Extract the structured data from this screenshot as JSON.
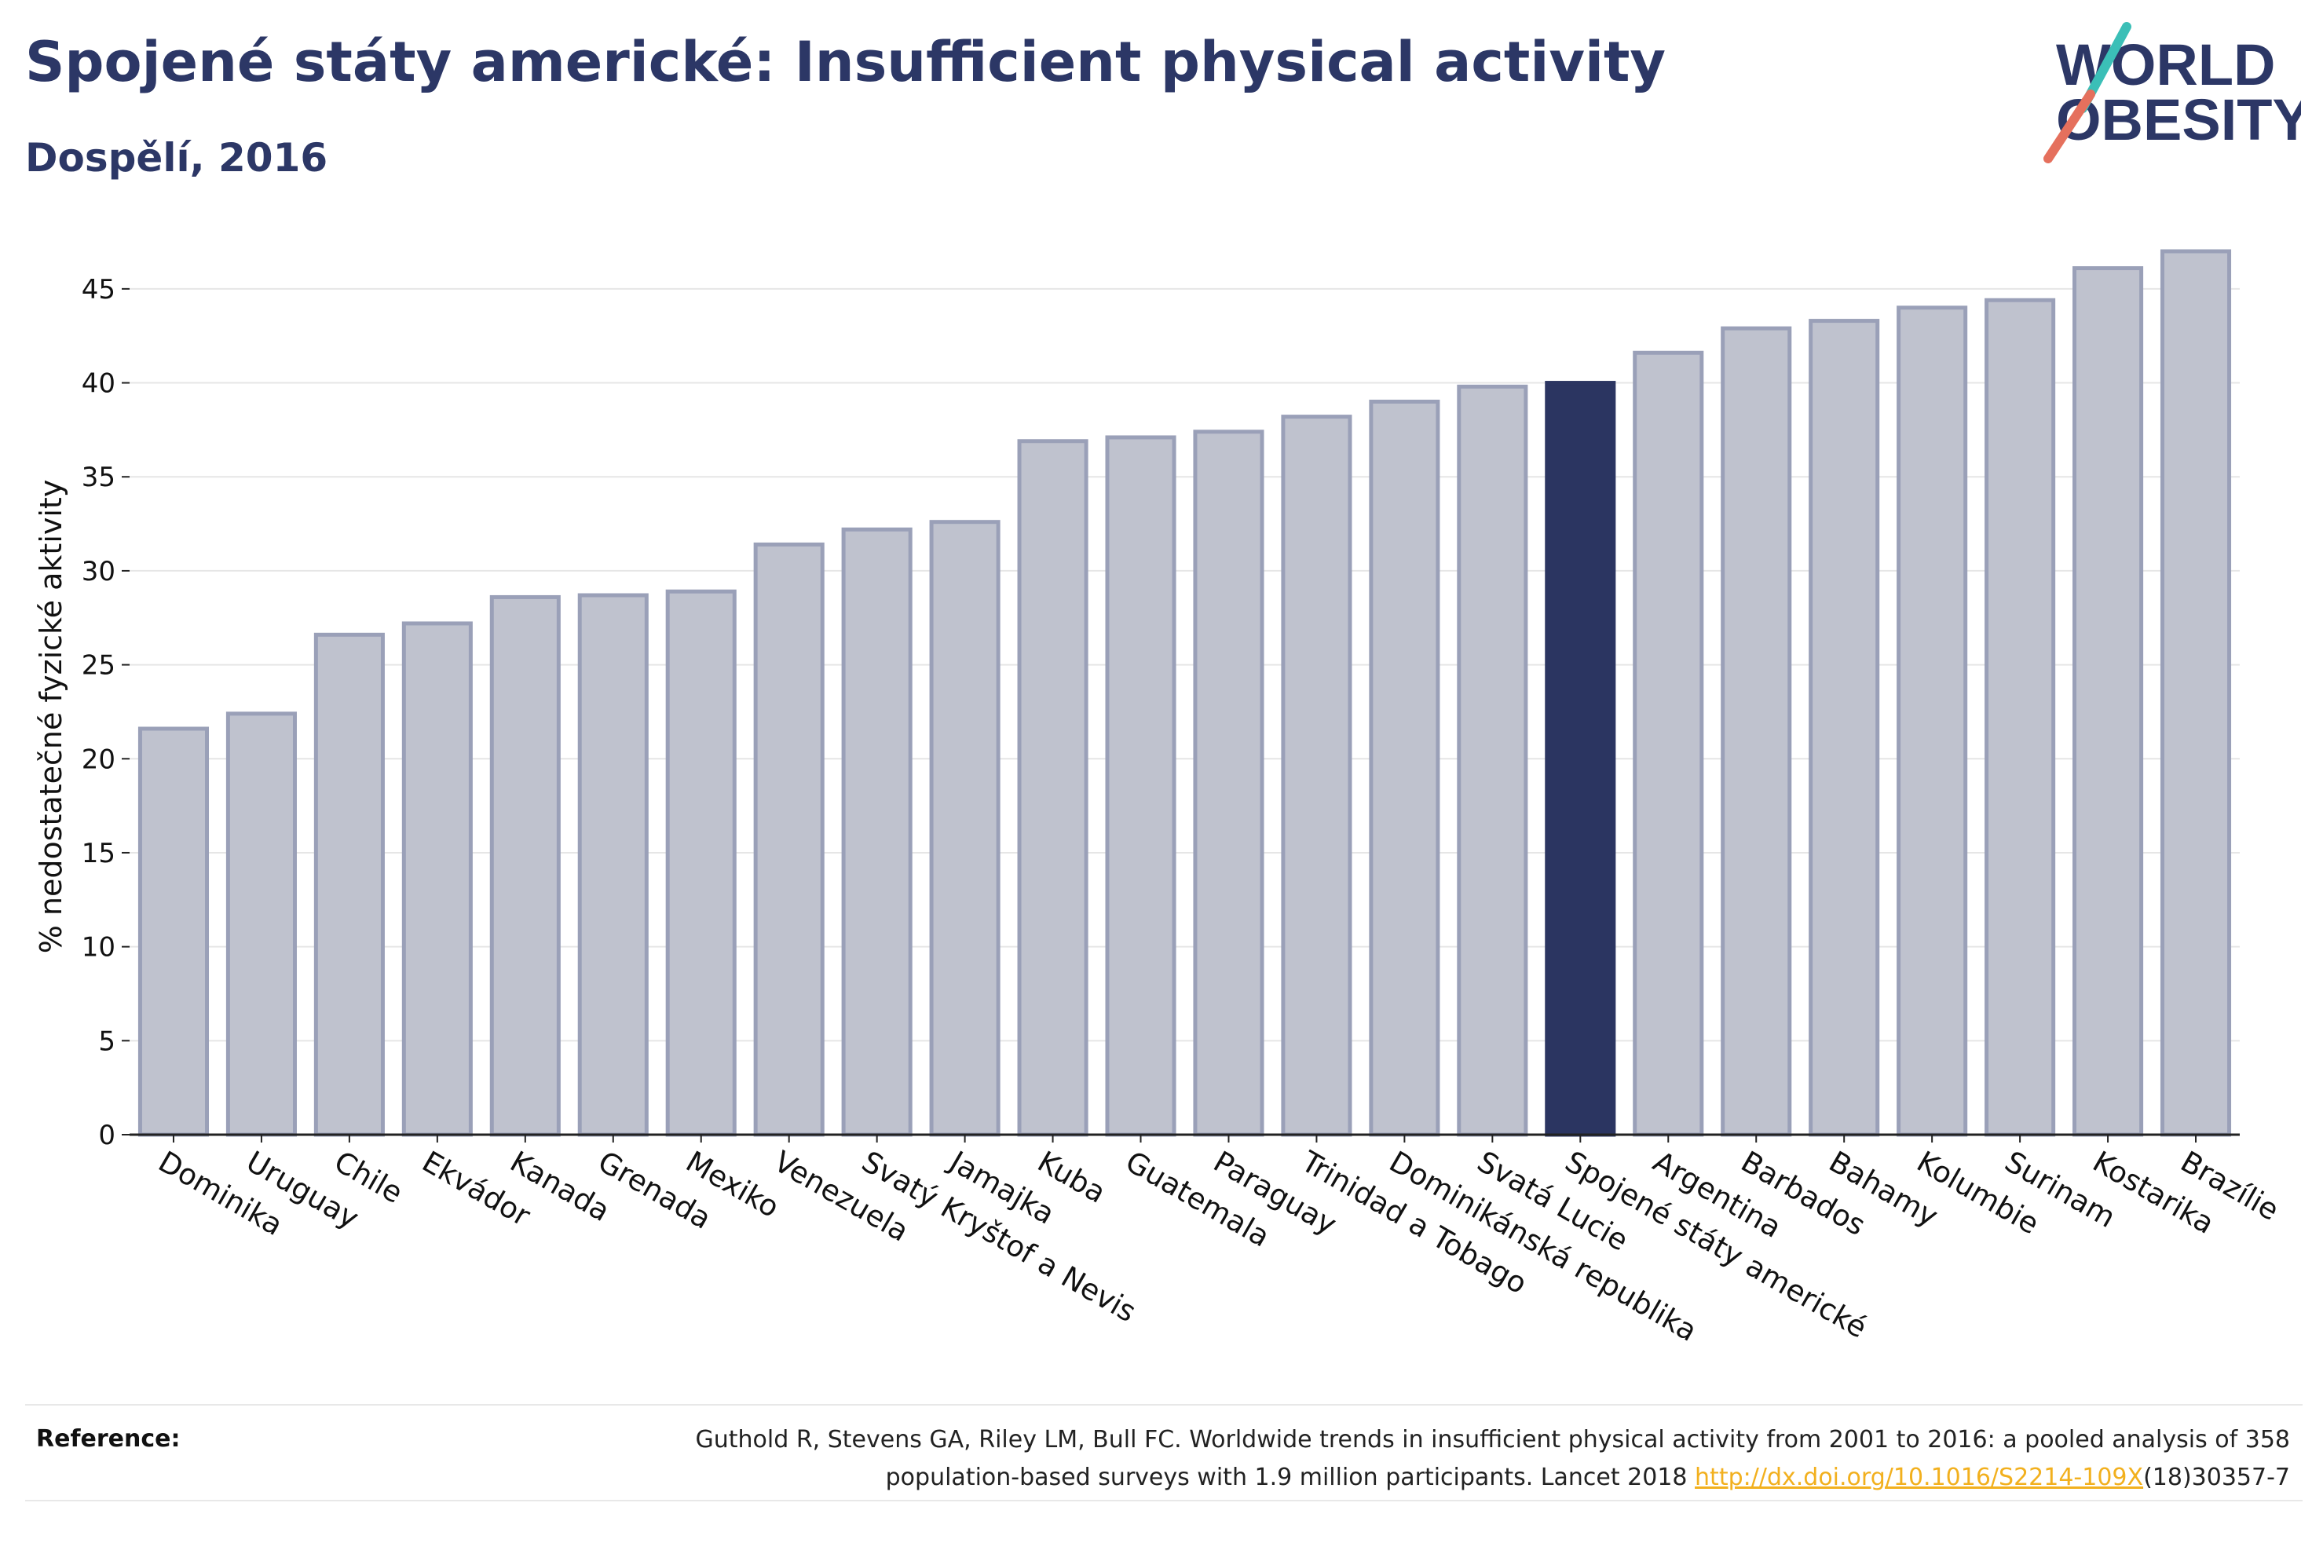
{
  "header": {
    "title": "Spojené státy americké: Insufficient physical activity",
    "subtitle": "Dospělí, 2016"
  },
  "logo": {
    "line1": "WORLD",
    "line2": "OBESITY",
    "colors": {
      "text": "#2c3766",
      "slash_teal": "#3bbfb7",
      "slash_coral": "#e5705d"
    }
  },
  "colors": {
    "bar_fill": "#bfc2ce",
    "bar_stroke": "#9aa0b8",
    "highlight_fill": "#2b3561",
    "gridline": "#e6e6e6",
    "axis": "#222222"
  },
  "chart_data": {
    "type": "bar",
    "title": "",
    "xlabel": "",
    "ylabel": "% nedostatečné fyzické aktivity",
    "ylim": [
      0,
      47
    ],
    "yticks": [
      0,
      5,
      10,
      15,
      20,
      25,
      30,
      35,
      40,
      45
    ],
    "grid": true,
    "highlight": "Spojené státy americké",
    "categories": [
      "Dominika",
      "Uruguay",
      "Chile",
      "Ekvádor",
      "Kanada",
      "Grenada",
      "Mexiko",
      "Venezuela",
      "Svatý Kryštof a Nevis",
      "Jamajka",
      "Kuba",
      "Guatemala",
      "Paraguay",
      "Trinidad a Tobago",
      "Dominikánská republika",
      "Svatá Lucie",
      "Spojené státy americké",
      "Argentina",
      "Barbados",
      "Bahamy",
      "Kolumbie",
      "Surinam",
      "Kostarika",
      "Brazílie"
    ],
    "values": [
      21.6,
      22.4,
      26.6,
      27.2,
      28.6,
      28.7,
      28.9,
      31.4,
      32.2,
      32.6,
      36.9,
      37.1,
      37.4,
      38.2,
      39.0,
      39.8,
      40.0,
      41.6,
      42.9,
      43.3,
      44.0,
      44.4,
      46.1,
      47.0
    ]
  },
  "reference": {
    "label": "Reference:",
    "text_before": "Guthold R, Stevens GA, Riley LM, Bull FC. Worldwide trends in insufficient physical activity from 2001 to 2016: a pooled analysis of 358 population-based surveys with 1.9 million participants. Lancet 2018 ",
    "link_text": "http://dx.doi.org/10.1016/S2214-109X",
    "text_after": "(18)30357-7"
  }
}
